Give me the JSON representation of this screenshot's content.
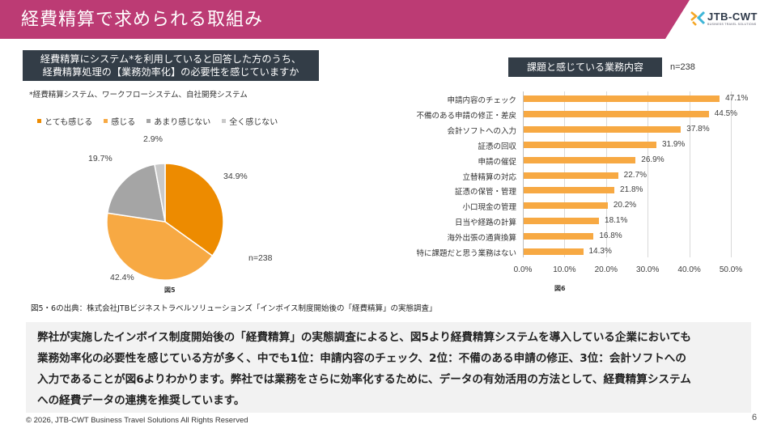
{
  "header": {
    "title": "経費精算で求められる取組み",
    "brand_color": "#bc3b74",
    "logo": {
      "name": "JTB-CWT",
      "tagline": "BUSINESS TRAVEL SOLUTIONS"
    }
  },
  "left_panel": {
    "question_line1": "経費精算にシステム*を利用していると回答した方のうち、",
    "question_line2": "経費精算処理の【業務効率化】の必要性を感じていますか",
    "footnote": "*経費精算システム、ワークフローシステム、自社開発システム",
    "figure_label": "図5"
  },
  "right_panel": {
    "title": "課題と感じている業務内容",
    "n_label": "n=238",
    "figure_label": "図6"
  },
  "chart_data": [
    {
      "type": "pie",
      "title": "経費精算処理の【業務効率化】の必要性を感じていますか",
      "legend_position": "top",
      "n_label": "n=238",
      "slices": [
        {
          "label": "とても感じる",
          "value": 34.9,
          "display": "34.9%",
          "color": "#ed8b00"
        },
        {
          "label": "感じる",
          "value": 42.4,
          "display": "42.4%",
          "color": "#f7a943"
        },
        {
          "label": "あまり感じない",
          "value": 19.7,
          "display": "19.7%",
          "color": "#a5a5a5"
        },
        {
          "label": "全く感じない",
          "value": 2.9,
          "display": "2.9%",
          "color": "#c9c9c9"
        }
      ]
    },
    {
      "type": "bar",
      "orientation": "horizontal",
      "title": "課題と感じている業務内容",
      "categories": [
        "申請内容のチェック",
        "不備のある申請の修正・差戻",
        "会計ソフトへの入力",
        "証憑の回収",
        "申請の催促",
        "立替精算の対応",
        "証憑の保管・管理",
        "小口現金の管理",
        "日当や経路の計算",
        "海外出張の通貨換算",
        "特に課題だと思う業務はない"
      ],
      "values": [
        47.1,
        44.5,
        37.8,
        31.9,
        26.9,
        22.7,
        21.8,
        20.2,
        18.1,
        16.8,
        14.3
      ],
      "value_labels": [
        "47.1%",
        "44.5%",
        "37.8%",
        "31.9%",
        "26.9%",
        "22.7%",
        "21.8%",
        "20.2%",
        "18.1%",
        "16.8%",
        "14.3%"
      ],
      "xlim": [
        0,
        50
      ],
      "xticks": [
        "0.0%",
        "10.0%",
        "20.0%",
        "30.0%",
        "40.0%",
        "50.0%"
      ],
      "grid": true,
      "bar_color": "#f7a943"
    }
  ],
  "source": "図5・6の出典：株式会社JTBビジネストラベルソリューションズ「インボイス制度開始後の「経費精算」の実態調査」",
  "summary": {
    "line1": "弊社が実施したインボイス制度開始後の「経費精算」の実態調査によると、図5より経費精算システムを導入している企業においても",
    "line2": "業務効率化の必要性を感じている方が多く、中でも1位：申請内容のチェック、2位：不備のある申請の修正、3位：会計ソフトへの",
    "line3": "入力であることが図6よりわかります。弊社では業務をさらに効率化するために、データの有効活用の方法として、経費精算システム",
    "line4": "への経費データの連携を推奨しています。"
  },
  "footer": {
    "copyright": "© 2026, JTB-CWT Business Travel Solutions All Rights Reserved",
    "page_number": "6"
  }
}
